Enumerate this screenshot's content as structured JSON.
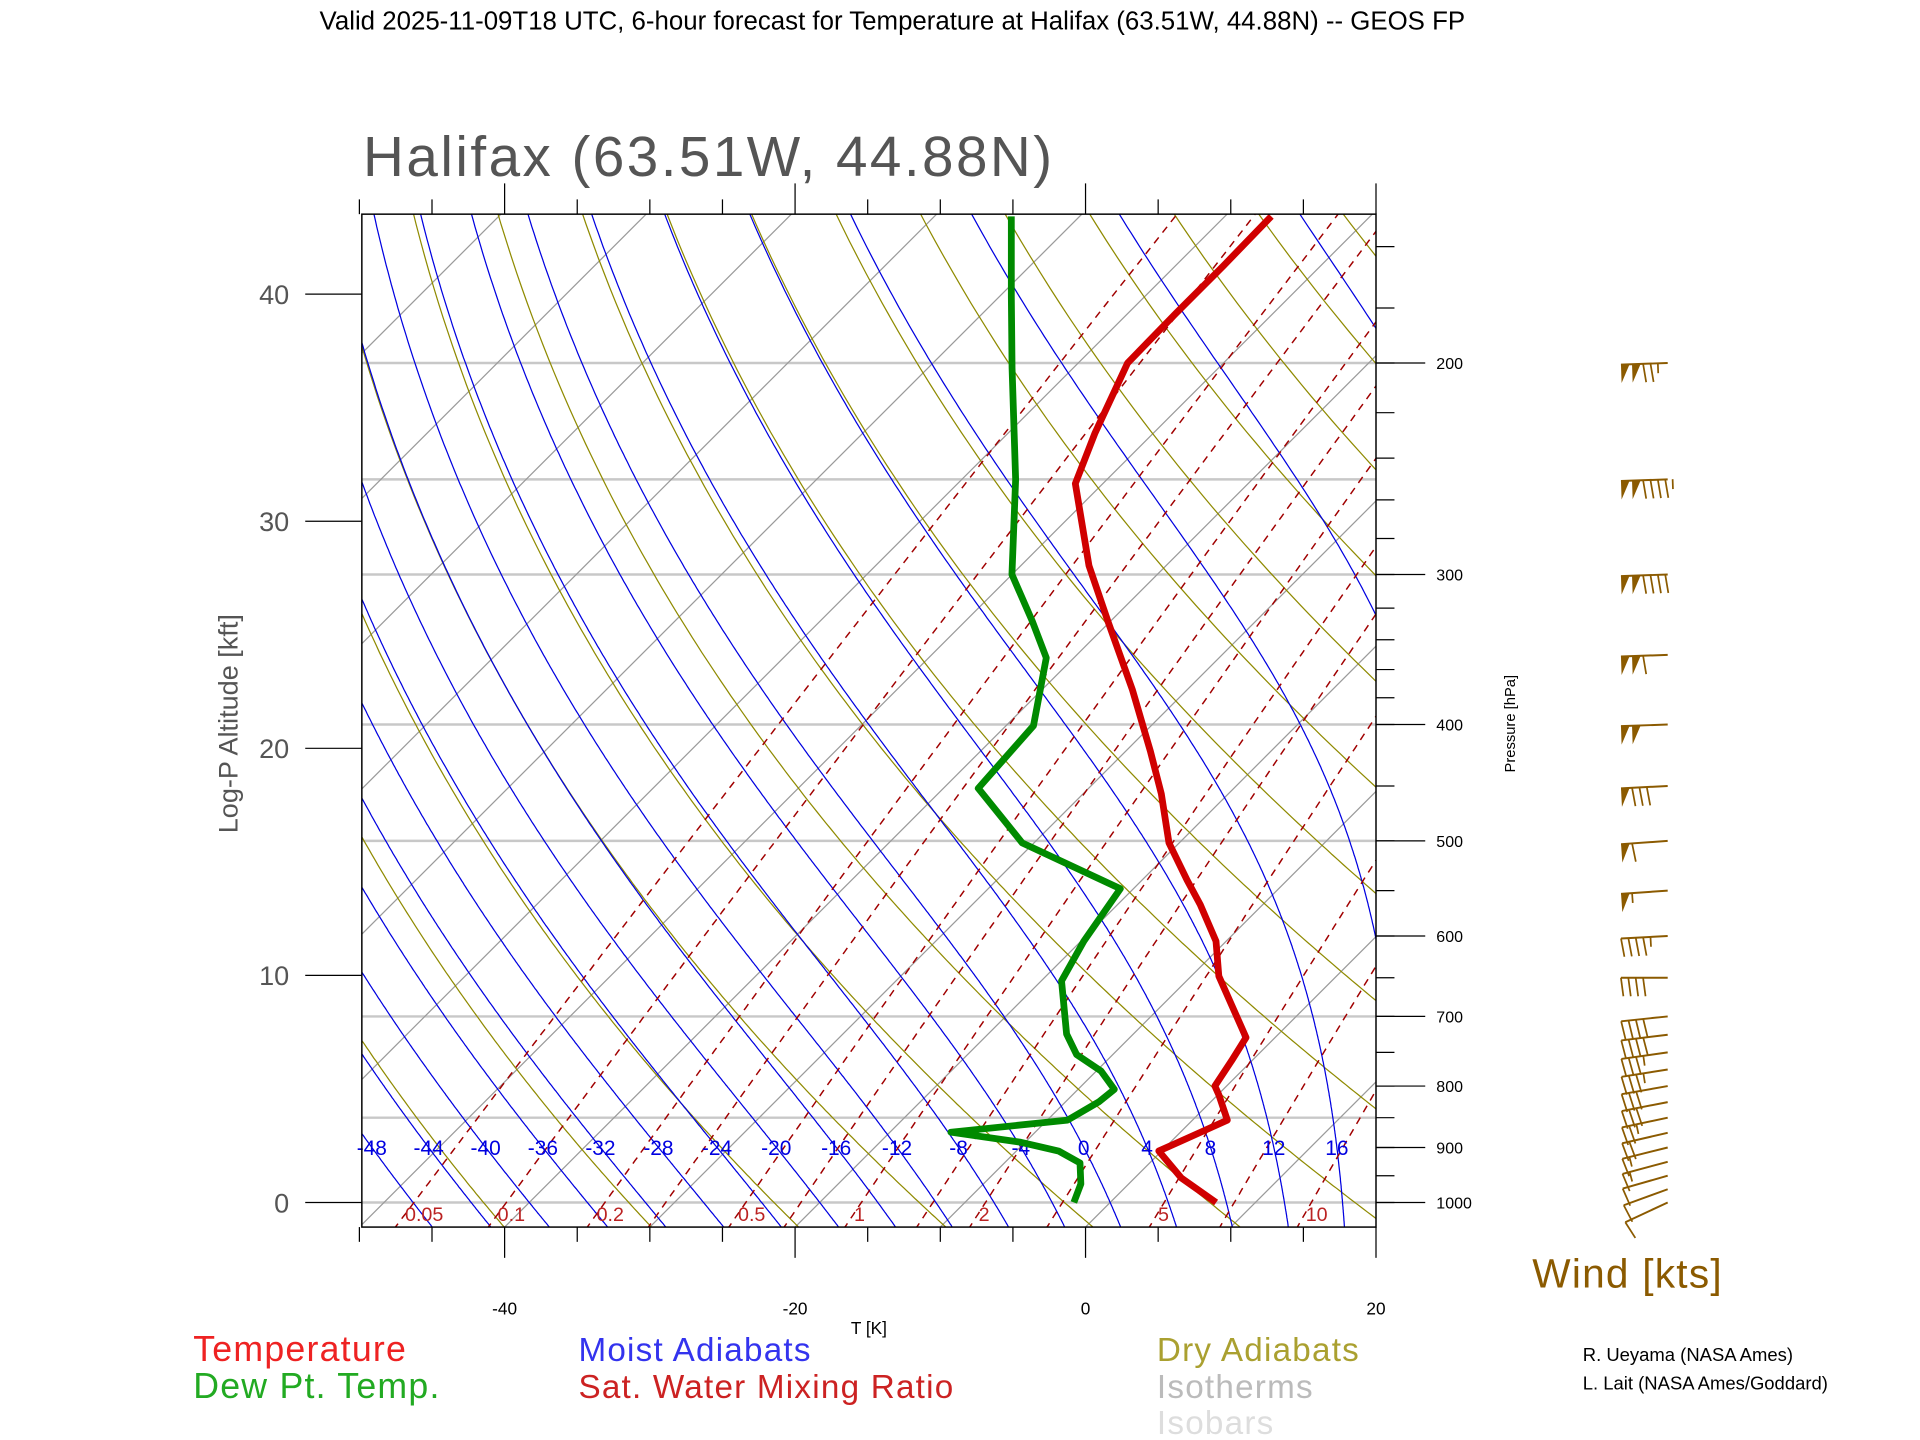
{
  "header": {
    "title": "Valid 2025-11-09T18 UTC, 6-hour forecast for Temperature at Halifax (63.51W, 44.88N) -- GEOS FP"
  },
  "chart_data": {
    "type": "line",
    "subtype": "skew-T log-P diagram",
    "title": "Halifax (63.51W, 44.88N)",
    "xlabel": "T [K]",
    "ylabel": "Log-P Altitude [kft]",
    "y2label": "Pressure [hPa]",
    "xlim": [
      -50,
      20
    ],
    "ylim": [
      -1.1,
      43.6
    ],
    "grid": true,
    "x_ticks": [
      "-40",
      "-20",
      "0",
      "20"
    ],
    "x_tick_values": [
      -40,
      -20,
      0,
      20
    ],
    "y_ticks": [
      "0",
      "10",
      "20",
      "30",
      "40"
    ],
    "y_tick_values": [
      0,
      10,
      20,
      30,
      40
    ],
    "pressure_ticks": [
      "200",
      "300",
      "400",
      "500",
      "600",
      "700",
      "800",
      "900",
      "1000"
    ],
    "pressure_tick_values": [
      200,
      300,
      400,
      500,
      600,
      700,
      800,
      900,
      1000
    ],
    "isobars_hPa": [
      1000,
      850,
      700,
      500,
      400,
      300,
      250,
      200
    ],
    "moist_adiabat_labels": [
      "-48",
      "-44",
      "-40",
      "-36",
      "-32",
      "-28",
      "-24",
      "-20",
      "-16",
      "-12",
      "-8",
      "-4",
      "0",
      "4",
      "8",
      "12",
      "16"
    ],
    "moist_adiabat_values": [
      -48,
      -44,
      -40,
      -36,
      -32,
      -28,
      -24,
      -20,
      -16,
      -12,
      -8,
      -4,
      0,
      4,
      8,
      12,
      16,
      20,
      24,
      28
    ],
    "mixing_ratio_labels": [
      "0.05",
      "0.1",
      "0.2",
      "0.5",
      "1",
      "2",
      "5",
      "10"
    ],
    "mixing_ratio_values": [
      0.05,
      0.1,
      0.2,
      0.3,
      0.5,
      0.7,
      1,
      1.5,
      2,
      3,
      5,
      7,
      10,
      15,
      20
    ],
    "series": [
      {
        "name": "Temperature",
        "color": "#d00000",
        "points_p_hPa_T_C": [
          [
            1000,
            7.3
          ],
          [
            954,
            3.2
          ],
          [
            906,
            -0.2
          ],
          [
            870,
            1.6
          ],
          [
            854,
            2.4
          ],
          [
            814,
            0.1
          ],
          [
            800,
            -0.8
          ],
          [
            762,
            -1.4
          ],
          [
            729,
            -2.0
          ],
          [
            648,
            -8.1
          ],
          [
            606,
            -10.7
          ],
          [
            565,
            -14.3
          ],
          [
            539,
            -16.9
          ],
          [
            502,
            -20.7
          ],
          [
            457,
            -24.6
          ],
          [
            421,
            -28.3
          ],
          [
            374,
            -33.8
          ],
          [
            328,
            -40.2
          ],
          [
            295,
            -45.3
          ],
          [
            252,
            -51.9
          ],
          [
            229,
            -54.0
          ],
          [
            200,
            -56.6
          ],
          [
            182,
            -56.7
          ],
          [
            166,
            -56.7
          ],
          [
            151,
            -56.8
          ]
        ]
      },
      {
        "name": "Dew Pt. Temp.",
        "color": "#008a00",
        "points_p_hPa_T_C": [
          [
            1000,
            -2.5
          ],
          [
            965,
            -3.3
          ],
          [
            927,
            -4.8
          ],
          [
            906,
            -7.1
          ],
          [
            891,
            -10.3
          ],
          [
            874,
            -15.8
          ],
          [
            854,
            -8.6
          ],
          [
            824,
            -7.7
          ],
          [
            805,
            -7.5
          ],
          [
            777,
            -9.7
          ],
          [
            753,
            -12.5
          ],
          [
            724,
            -14.6
          ],
          [
            654,
            -18.6
          ],
          [
            606,
            -19.8
          ],
          [
            548,
            -20.9
          ],
          [
            502,
            -30.8
          ],
          [
            452,
            -37.6
          ],
          [
            401,
            -38.1
          ],
          [
            352,
            -41.9
          ],
          [
            328,
            -45.4
          ],
          [
            300,
            -50.0
          ],
          [
            250,
            -56.3
          ],
          [
            202,
            -64.2
          ],
          [
            176,
            -69.2
          ],
          [
            151,
            -74.7
          ]
        ]
      }
    ],
    "wind": {
      "label": "Wind [kts]",
      "color": "#8b5a00",
      "barbs": [
        {
          "p": 200,
          "speed_kt": 125,
          "dir_deg": 272
        },
        {
          "p": 250,
          "speed_kt": 145,
          "dir_deg": 272
        },
        {
          "p": 300,
          "speed_kt": 140,
          "dir_deg": 272
        },
        {
          "p": 350,
          "speed_kt": 110,
          "dir_deg": 272
        },
        {
          "p": 400,
          "speed_kt": 100,
          "dir_deg": 272
        },
        {
          "p": 450,
          "speed_kt": 80,
          "dir_deg": 273
        },
        {
          "p": 500,
          "speed_kt": 60,
          "dir_deg": 274
        },
        {
          "p": 550,
          "speed_kt": 55,
          "dir_deg": 274
        },
        {
          "p": 600,
          "speed_kt": 45,
          "dir_deg": 273
        },
        {
          "p": 650,
          "speed_kt": 40,
          "dir_deg": 270
        },
        {
          "p": 700,
          "speed_kt": 40,
          "dir_deg": 276
        },
        {
          "p": 725,
          "speed_kt": 40,
          "dir_deg": 277
        },
        {
          "p": 750,
          "speed_kt": 35,
          "dir_deg": 278
        },
        {
          "p": 775,
          "speed_kt": 35,
          "dir_deg": 279
        },
        {
          "p": 800,
          "speed_kt": 30,
          "dir_deg": 280
        },
        {
          "p": 825,
          "speed_kt": 30,
          "dir_deg": 281
        },
        {
          "p": 850,
          "speed_kt": 25,
          "dir_deg": 282
        },
        {
          "p": 875,
          "speed_kt": 20,
          "dir_deg": 283
        },
        {
          "p": 900,
          "speed_kt": 15,
          "dir_deg": 284
        },
        {
          "p": 925,
          "speed_kt": 15,
          "dir_deg": 285
        },
        {
          "p": 950,
          "speed_kt": 10,
          "dir_deg": 286
        },
        {
          "p": 975,
          "speed_kt": 10,
          "dir_deg": 290
        },
        {
          "p": 1000,
          "speed_kt": 10,
          "dir_deg": 295
        }
      ]
    },
    "legend": {
      "temperature": "Temperature",
      "dewpoint": "Dew Pt. Temp.",
      "moist_adiabats": "Moist Adiabats",
      "mixing_ratio": "Sat. Water Mixing Ratio",
      "dry_adiabats": "Dry Adiabats",
      "isotherms": "Isotherms",
      "isobars": "Isobars"
    },
    "colors": {
      "moist_adiabat": "#0000e0",
      "dry_adiabat": "#8f8a00",
      "isotherm": "#9a9a9a",
      "isobar": "#c8c8c8",
      "mixing_ratio": "#a00000"
    }
  },
  "credits": [
    "R. Ueyama (NASA Ames)",
    "L. Lait (NASA Ames/Goddard)"
  ]
}
